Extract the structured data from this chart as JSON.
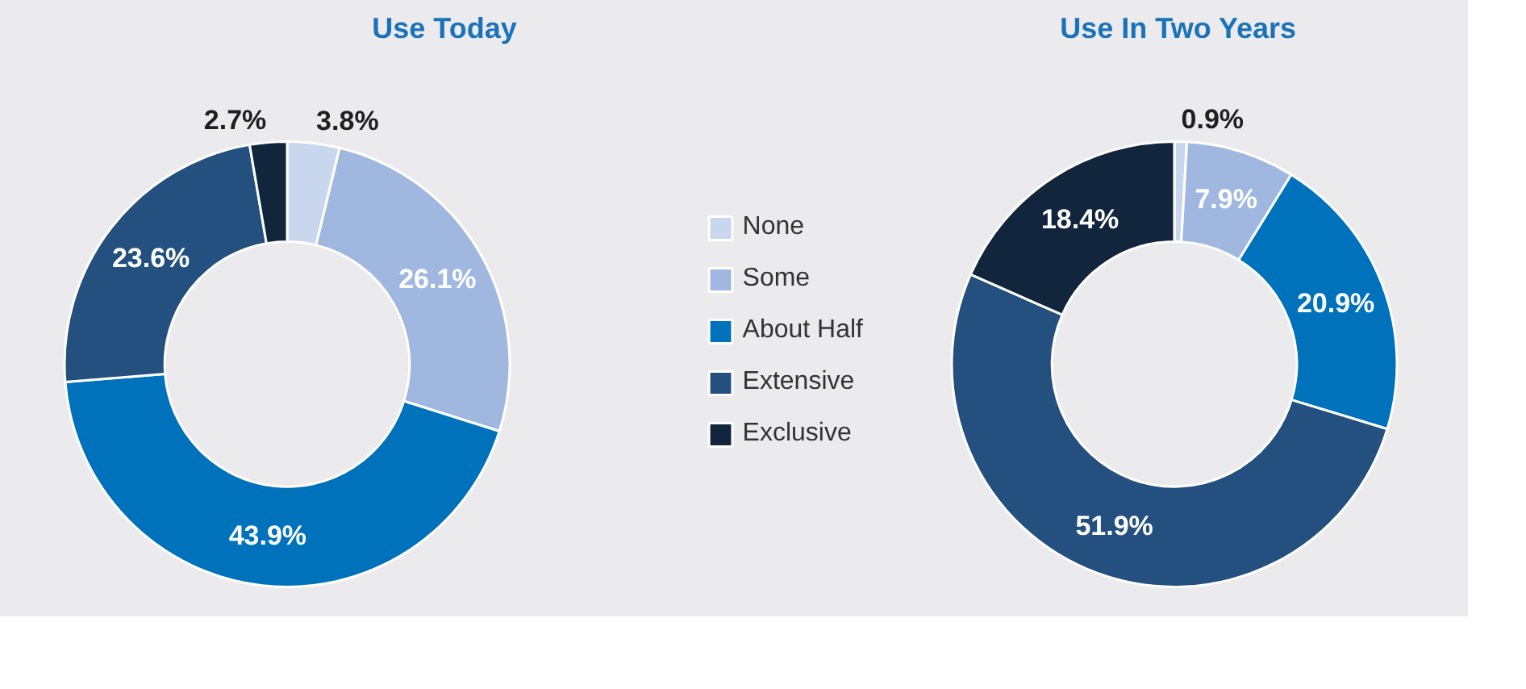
{
  "chart_data": [
    {
      "type": "donut",
      "title": "Use Today",
      "categories": [
        "None",
        "Some",
        "About Half",
        "Extensive",
        "Exclusive"
      ],
      "values": [
        3.8,
        26.1,
        43.9,
        23.6,
        2.7
      ],
      "value_labels": [
        "3.8%",
        "26.1%",
        "43.9%",
        "23.6%",
        "2.7%"
      ],
      "colors": [
        "#c9d7ee",
        "#a0b8e0",
        "#0072bb",
        "#23507f",
        "#11263d"
      ],
      "data_labels": true,
      "legend": "right"
    },
    {
      "type": "donut",
      "title": "Use In Two Years",
      "categories": [
        null,
        null,
        null,
        null,
        null
      ],
      "values": [
        0.9,
        7.9,
        20.9,
        51.9,
        18.4
      ],
      "value_labels": [
        "0.9%",
        "7.9%",
        "20.9%",
        "51.9%",
        "18.4%"
      ],
      "colors": [
        "#c9d7ee",
        "#a0b8e0",
        "#0072bb",
        "#23507f",
        "#11263d"
      ],
      "data_labels": true
    }
  ]
}
